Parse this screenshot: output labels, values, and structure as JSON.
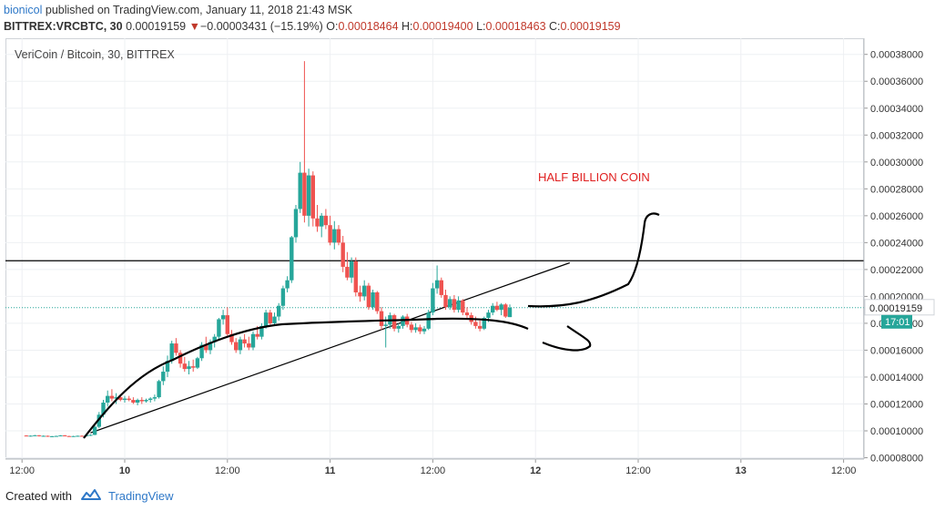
{
  "header": {
    "user": "bionicol",
    "published_text": " published on TradingView.com, January 11, 2018 21:43 MSK",
    "symbol": "BITTREX:VRCBTC, 30",
    "price": "0.00019159",
    "change": "−0.00003431 (−15.19%)",
    "o_label": "O:",
    "o_value": "0.00018464",
    "h_label": "H:",
    "h_value": "0.00019400",
    "l_label": "L:",
    "l_value": "0.00018463",
    "c_label": "C:",
    "c_value": "0.00019159"
  },
  "chart_title": "VeriCoin / Bitcoin, 30, BITTREX",
  "footer": {
    "created_with": "Created with",
    "brand": "TradingView"
  },
  "colors": {
    "up": "#26a69a",
    "down": "#ef5350",
    "accent": "#2e78c8",
    "annotation": "#e02020"
  },
  "chart_data": {
    "type": "candlestick",
    "title": "VeriCoin / Bitcoin, 30, BITTREX",
    "xlabel": "",
    "ylabel": "",
    "ylim": [
      7.9e-05,
      0.000392
    ],
    "y_ticks": [
      "0.00008000",
      "0.00010000",
      "0.00012000",
      "0.00014000",
      "0.00016000",
      "0.00018000",
      "0.00020000",
      "0.00022000",
      "0.00024000",
      "0.00026000",
      "0.00028000",
      "0.00030000",
      "0.00032000",
      "0.00034000",
      "0.00036000",
      "0.00038000"
    ],
    "x_ticks": [
      "12:00",
      "10",
      "12:00",
      "11",
      "12:00",
      "12",
      "12:00",
      "13",
      "12:00"
    ],
    "x_tick_bold": [
      false,
      true,
      false,
      true,
      false,
      true,
      false,
      true,
      false
    ],
    "x_tick_hours": [
      -12,
      0,
      12,
      24,
      36,
      48,
      60,
      72,
      84
    ],
    "last_price_label": "0.00019159",
    "countdown_label": "17:01",
    "annotation_text": "HALF BILLION COIN",
    "resistance_level": 0.0002265,
    "trendline": [
      [
        -4.0,
        9.85e-05
      ],
      [
        52.0,
        0.000225
      ]
    ],
    "candles": [
      [
        -11.5,
        9.65e-05,
        9.68e-05,
        9.6e-05,
        9.62e-05
      ],
      [
        -11.0,
        9.62e-05,
        9.66e-05,
        9.58e-05,
        9.64e-05
      ],
      [
        -10.5,
        9.64e-05,
        9.7e-05,
        9.61e-05,
        9.67e-05
      ],
      [
        -10.0,
        9.67e-05,
        9.69e-05,
        9.58e-05,
        9.61e-05
      ],
      [
        -9.5,
        9.61e-05,
        9.66e-05,
        9.57e-05,
        9.63e-05
      ],
      [
        -9.0,
        9.63e-05,
        9.65e-05,
        9.55e-05,
        9.58e-05
      ],
      [
        -8.5,
        9.58e-05,
        9.62e-05,
        9.53e-05,
        9.6e-05
      ],
      [
        -8.0,
        9.6e-05,
        9.64e-05,
        9.56e-05,
        9.62e-05
      ],
      [
        -7.5,
        9.62e-05,
        9.68e-05,
        9.6e-05,
        9.66e-05
      ],
      [
        -7.0,
        9.66e-05,
        9.69e-05,
        9.59e-05,
        9.61e-05
      ],
      [
        -6.5,
        9.61e-05,
        9.64e-05,
        9.56e-05,
        9.58e-05
      ],
      [
        -6.0,
        9.58e-05,
        9.63e-05,
        9.55e-05,
        9.61e-05
      ],
      [
        -5.5,
        9.61e-05,
        9.65e-05,
        9.58e-05,
        9.63e-05
      ],
      [
        -5.0,
        9.63e-05,
        9.67e-05,
        9.59e-05,
        9.6e-05
      ],
      [
        -4.5,
        9.6e-05,
        9.7e-05,
        9.58e-05,
        9.68e-05
      ],
      [
        -4.0,
        9.68e-05,
        9.75e-05,
        9.62e-05,
        9.7e-05
      ],
      [
        -3.5,
        9.7e-05,
        0.000104,
        9.68e-05,
        0.000103
      ],
      [
        -3.0,
        0.000103,
        0.000114,
        0.000102,
        0.000112
      ],
      [
        -2.5,
        0.000112,
        0.000123,
        0.00011,
        0.000121
      ],
      [
        -2.0,
        0.000121,
        0.00013,
        0.000118,
        0.000126
      ],
      [
        -1.5,
        0.000126,
        0.000131,
        0.000122,
        0.000124
      ],
      [
        -1.0,
        0.000124,
        0.000128,
        0.00012,
        0.000125
      ],
      [
        -0.5,
        0.000125,
        0.000127,
        0.000122,
        0.000123
      ],
      [
        0.0,
        0.000123,
        0.000126,
        0.000121,
        0.000124
      ],
      [
        0.5,
        0.000124,
        0.000126,
        0.000122,
        0.000123
      ],
      [
        1.0,
        0.000123,
        0.000125,
        0.00012,
        0.000121
      ],
      [
        1.5,
        0.000121,
        0.000124,
        0.000119,
        0.000123
      ],
      [
        2.0,
        0.000123,
        0.000125,
        0.00012,
        0.000122
      ],
      [
        2.5,
        0.000122,
        0.000124,
        0.000121,
        0.000123
      ],
      [
        3.0,
        0.000123,
        0.000125,
        0.000121,
        0.000124
      ],
      [
        3.5,
        0.000124,
        0.000127,
        0.000122,
        0.000125
      ],
      [
        4.0,
        0.000125,
        0.000138,
        0.000124,
        0.000137
      ],
      [
        4.5,
        0.000137,
        0.000148,
        0.000134,
        0.000144
      ],
      [
        5.0,
        0.000144,
        0.000156,
        0.00014,
        0.000152
      ],
      [
        5.5,
        0.000152,
        0.000167,
        0.00015,
        0.000165
      ],
      [
        6.0,
        0.000165,
        0.000169,
        0.000156,
        0.000158
      ],
      [
        6.5,
        0.000158,
        0.00016,
        0.000147,
        0.00015
      ],
      [
        7.0,
        0.00015,
        0.000155,
        0.000144,
        0.000146
      ],
      [
        7.5,
        0.000146,
        0.000152,
        0.000142,
        0.000148
      ],
      [
        8.0,
        0.000148,
        0.000153,
        0.000144,
        0.000147
      ],
      [
        8.5,
        0.000147,
        0.000155,
        0.000146,
        0.000154
      ],
      [
        9.0,
        0.000154,
        0.000166,
        0.000152,
        0.000164
      ],
      [
        9.5,
        0.000164,
        0.00017,
        0.000158,
        0.00016
      ],
      [
        10.0,
        0.00016,
        0.000168,
        0.000157,
        0.000166
      ],
      [
        10.5,
        0.000166,
        0.000172,
        0.000162,
        0.00017
      ],
      [
        11.0,
        0.00017,
        0.000184,
        0.000168,
        0.000183
      ],
      [
        11.5,
        0.000183,
        0.00019,
        0.000179,
        0.000186
      ],
      [
        12.0,
        0.000186,
        0.000192,
        0.00017,
        0.000172
      ],
      [
        12.5,
        0.000172,
        0.000175,
        0.000164,
        0.000166
      ],
      [
        13.0,
        0.000166,
        0.000169,
        0.000158,
        0.00016
      ],
      [
        13.5,
        0.00016,
        0.00017,
        0.000157,
        0.000168
      ],
      [
        14.0,
        0.000168,
        0.000172,
        0.000162,
        0.000165
      ],
      [
        14.5,
        0.000165,
        0.00017,
        0.00016,
        0.000162
      ],
      [
        15.0,
        0.000162,
        0.000174,
        0.00016,
        0.000172
      ],
      [
        15.5,
        0.000172,
        0.000178,
        0.000168,
        0.00017
      ],
      [
        16.0,
        0.00017,
        0.00018,
        0.000168,
        0.000178
      ],
      [
        16.5,
        0.000178,
        0.00019,
        0.000176,
        0.000188
      ],
      [
        17.0,
        0.000188,
        0.00019,
        0.000179,
        0.00018
      ],
      [
        17.5,
        0.00018,
        0.000188,
        0.000178,
        0.000185
      ],
      [
        18.0,
        0.000185,
        0.000195,
        0.000182,
        0.000193
      ],
      [
        18.5,
        0.000193,
        0.000208,
        0.00019,
        0.000206
      ],
      [
        19.0,
        0.000206,
        0.000215,
        0.000203,
        0.000212
      ],
      [
        19.5,
        0.000212,
        0.000245,
        0.00021,
        0.000244
      ],
      [
        20.0,
        0.000244,
        0.000268,
        0.00024,
        0.000265
      ],
      [
        20.5,
        0.000265,
        0.0003,
        0.000262,
        0.000292
      ],
      [
        21.0,
        0.000292,
        0.000375,
        0.000255,
        0.00026
      ],
      [
        21.5,
        0.00026,
        0.000295,
        0.000252,
        0.00029
      ],
      [
        22.0,
        0.00029,
        0.000293,
        0.000252,
        0.000258
      ],
      [
        22.5,
        0.000258,
        0.000268,
        0.000248,
        0.000252
      ],
      [
        23.0,
        0.000252,
        0.000262,
        0.000244,
        0.00026
      ],
      [
        23.5,
        0.00026,
        0.000265,
        0.00025,
        0.000253
      ],
      [
        24.0,
        0.000253,
        0.00026,
        0.000238,
        0.00024
      ],
      [
        24.5,
        0.00024,
        0.000256,
        0.000235,
        0.00025
      ],
      [
        25.0,
        0.00025,
        0.000253,
        0.000238,
        0.00024
      ],
      [
        25.5,
        0.00024,
        0.000245,
        0.000218,
        0.000222
      ],
      [
        26.0,
        0.000222,
        0.000233,
        0.000212,
        0.000214
      ],
      [
        26.5,
        0.000214,
        0.000229,
        0.00021,
        0.000226
      ],
      [
        27.0,
        0.000226,
        0.000229,
        0.0002,
        0.000203
      ],
      [
        27.5,
        0.000203,
        0.000208,
        0.000196,
        0.0002
      ],
      [
        28.0,
        0.0002,
        0.000212,
        0.000197,
        0.000208
      ],
      [
        28.5,
        0.000208,
        0.00021,
        0.00019,
        0.000192
      ],
      [
        29.0,
        0.000192,
        0.000205,
        0.00019,
        0.000203
      ],
      [
        29.5,
        0.000203,
        0.000204,
        0.000187,
        0.000189
      ],
      [
        30.0,
        0.000189,
        0.000192,
        0.000175,
        0.000178
      ],
      [
        30.5,
        0.000178,
        0.000185,
        0.000162,
        0.000179
      ],
      [
        31.0,
        0.000179,
        0.000188,
        0.000176,
        0.000186
      ],
      [
        31.5,
        0.000186,
        0.000187,
        0.000174,
        0.000176
      ],
      [
        32.0,
        0.000176,
        0.00018,
        0.000173,
        0.000178
      ],
      [
        32.5,
        0.000178,
        0.000186,
        0.000176,
        0.000185
      ],
      [
        33.0,
        0.000185,
        0.000187,
        0.000177,
        0.000179
      ],
      [
        33.5,
        0.000179,
        0.000181,
        0.000173,
        0.000175
      ],
      [
        34.0,
        0.000175,
        0.00018,
        0.000173,
        0.000177
      ],
      [
        34.5,
        0.000177,
        0.000179,
        0.000172,
        0.000174
      ],
      [
        35.0,
        0.000174,
        0.000178,
        0.000172,
        0.000176
      ],
      [
        35.5,
        0.000176,
        0.00019,
        0.000175,
        0.000188
      ],
      [
        36.0,
        0.000188,
        0.00021,
        0.000186,
        0.000206
      ],
      [
        36.5,
        0.000206,
        0.000223,
        0.000202,
        0.000212
      ],
      [
        37.0,
        0.000212,
        0.000214,
        0.000199,
        0.000201
      ],
      [
        37.5,
        0.000201,
        0.000205,
        0.00019,
        0.000192
      ],
      [
        38.0,
        0.000192,
        0.0002,
        0.00019,
        0.000198
      ],
      [
        38.5,
        0.000198,
        0.000201,
        0.000188,
        0.00019
      ],
      [
        39.0,
        0.00019,
        0.0002,
        0.000188,
        0.000197
      ],
      [
        39.5,
        0.000197,
        0.000198,
        0.000186,
        0.000188
      ],
      [
        40.0,
        0.000188,
        0.000192,
        0.000184,
        0.000186
      ],
      [
        40.5,
        0.000186,
        0.000188,
        0.000179,
        0.000181
      ],
      [
        41.0,
        0.000181,
        0.000185,
        0.000176,
        0.000178
      ],
      [
        41.5,
        0.000178,
        0.000182,
        0.000174,
        0.000176
      ],
      [
        42.0,
        0.000176,
        0.000185,
        0.000175,
        0.000184
      ],
      [
        42.5,
        0.000184,
        0.00019,
        0.000181,
        0.000188
      ],
      [
        43.0,
        0.000188,
        0.000195,
        0.000186,
        0.000193
      ],
      [
        43.5,
        0.000193,
        0.000196,
        0.000189,
        0.00019
      ],
      [
        44.0,
        0.00019,
        0.000195,
        0.000186,
        0.000194
      ],
      [
        44.5,
        0.000194,
        0.000195,
        0.000184,
        0.000185
      ],
      [
        45.0,
        0.0001846,
        0.000194,
        0.0001846,
        0.0001916
      ]
    ]
  }
}
